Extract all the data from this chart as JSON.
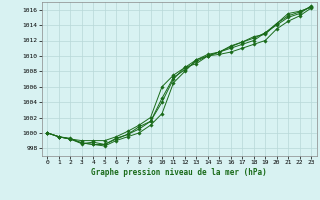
{
  "title": "Graphe pression niveau de la mer (hPa)",
  "background_color": "#d8f2f2",
  "grid_color": "#b8d8d8",
  "line_color": "#1a6b1a",
  "x_ticks": [
    0,
    1,
    2,
    3,
    4,
    5,
    6,
    7,
    8,
    9,
    10,
    11,
    12,
    13,
    14,
    15,
    16,
    17,
    18,
    19,
    20,
    21,
    22,
    23
  ],
  "ylim": [
    997.0,
    1017.0
  ],
  "yticks": [
    998,
    1000,
    1002,
    1004,
    1006,
    1008,
    1010,
    1012,
    1014,
    1016
  ],
  "series": [
    [
      1000,
      999.5,
      999.2,
      998.6,
      998.8,
      998.5,
      999.3,
      999.8,
      1000.5,
      1001.5,
      1004.0,
      1007.0,
      1008.5,
      1009.0,
      1010.0,
      1010.5,
      1011.0,
      1011.5,
      1012.0,
      1013.0,
      1014.0,
      1015.0,
      1015.5,
      1016.5
    ],
    [
      1000,
      999.5,
      999.2,
      999.0,
      999.0,
      999.0,
      999.5,
      1000.2,
      1001.0,
      1002.0,
      1006.0,
      1007.5,
      1008.5,
      1009.5,
      1010.0,
      1010.2,
      1010.5,
      1011.0,
      1011.5,
      1012.0,
      1013.5,
      1014.5,
      1015.2,
      1016.2
    ],
    [
      1000,
      999.5,
      999.3,
      998.7,
      998.5,
      998.3,
      999.0,
      999.5,
      1000.0,
      1001.0,
      1002.5,
      1006.5,
      1008.0,
      1009.5,
      1010.2,
      1010.5,
      1011.2,
      1011.8,
      1012.5,
      1012.8,
      1014.2,
      1015.5,
      1015.8,
      1016.3
    ],
    [
      1000,
      999.5,
      999.2,
      998.7,
      998.5,
      998.5,
      999.2,
      999.8,
      1000.8,
      1001.5,
      1004.5,
      1007.2,
      1008.2,
      1009.3,
      1010.0,
      1010.5,
      1011.3,
      1011.8,
      1012.3,
      1013.0,
      1014.2,
      1015.2,
      1015.7,
      1016.4
    ]
  ]
}
